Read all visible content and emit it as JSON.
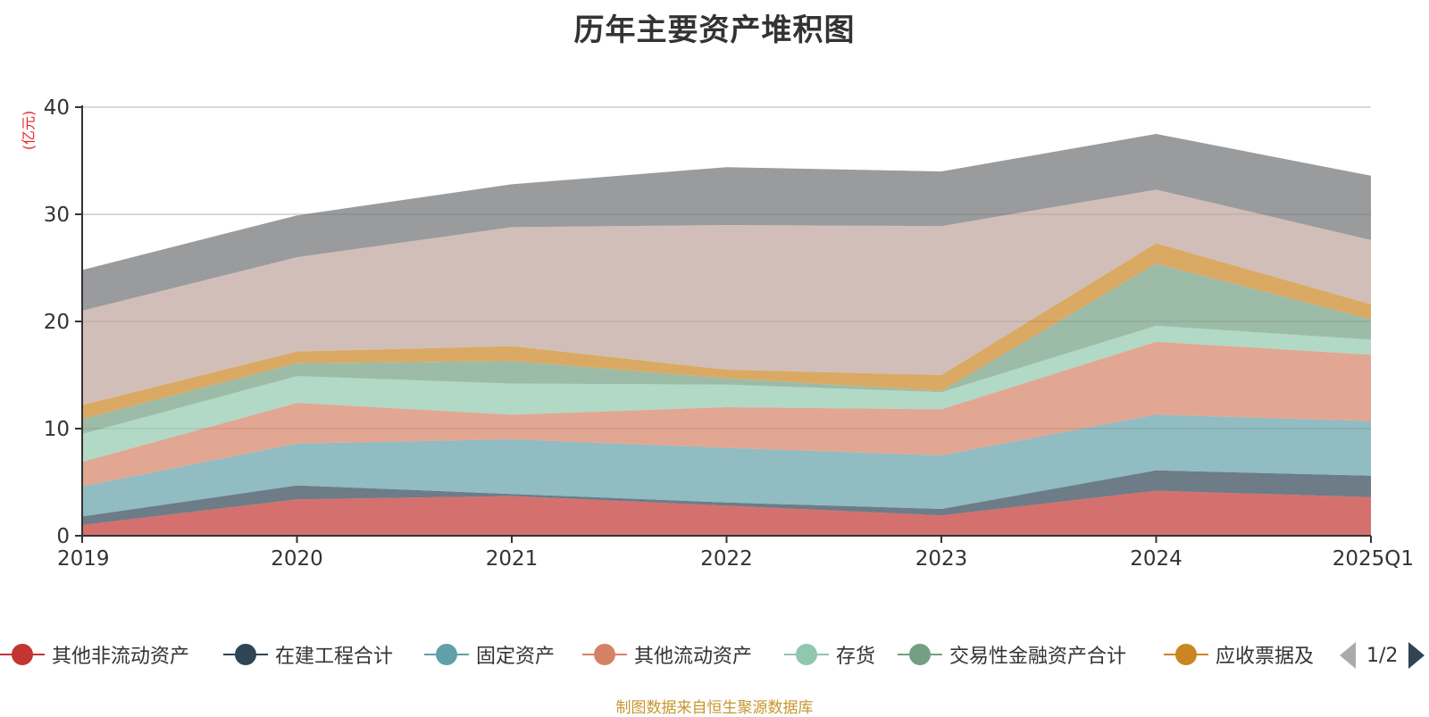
{
  "chart_data": {
    "type": "area",
    "stacked": true,
    "title": "历年主要资产堆积图",
    "ylabel": "(亿元)",
    "xlabel": "",
    "categories": [
      "2019",
      "2020",
      "2021",
      "2022",
      "2023",
      "2024",
      "2025Q1"
    ],
    "ylim": [
      0,
      40
    ],
    "yticks": [
      0,
      10,
      20,
      30,
      40
    ],
    "grid": true,
    "series": [
      {
        "name": "其他非流动资产",
        "color": "#c23531",
        "values": [
          1.0,
          3.4,
          3.7,
          2.8,
          1.9,
          4.2,
          3.6
        ]
      },
      {
        "name": "在建工程合计",
        "color": "#2f4554",
        "values": [
          0.8,
          1.3,
          0.2,
          0.3,
          0.6,
          1.9,
          2.0
        ]
      },
      {
        "name": "固定资产",
        "color": "#61a0a8",
        "values": [
          2.8,
          3.9,
          5.1,
          5.1,
          5.0,
          5.2,
          5.1
        ]
      },
      {
        "name": "其他流动资产",
        "color": "#d48265",
        "values": [
          2.3,
          3.8,
          2.3,
          3.8,
          4.3,
          6.8,
          6.2
        ]
      },
      {
        "name": "存货",
        "color": "#91c7ae",
        "values": [
          2.6,
          2.5,
          2.9,
          2.1,
          1.6,
          1.5,
          1.4
        ]
      },
      {
        "name": "交易性金融资产合计",
        "color": "#749f83",
        "values": [
          1.4,
          1.2,
          2.1,
          0.6,
          0.1,
          5.8,
          1.9
        ]
      },
      {
        "name": "应收票据及应收账款",
        "color": "#ca8622",
        "values": [
          1.3,
          1.1,
          1.4,
          0.8,
          1.5,
          1.9,
          1.4
        ]
      },
      {
        "values": [
          8.8,
          8.8,
          11.1,
          13.5,
          13.9,
          5.0,
          6.0
        ],
        "color": "#bda29a"
      },
      {
        "values": [
          3.8,
          3.9,
          4.0,
          5.4,
          5.1,
          5.2,
          6.0
        ],
        "color": "#6e7074"
      }
    ]
  },
  "legend": {
    "items": [
      {
        "label": "其他非流动资产",
        "color": "#c23531"
      },
      {
        "label": "在建工程合计",
        "color": "#2f4554"
      },
      {
        "label": "固定资产",
        "color": "#61a0a8"
      },
      {
        "label": "其他流动资产",
        "color": "#d48265"
      },
      {
        "label": "存货",
        "color": "#91c7ae"
      },
      {
        "label": "交易性金融资产合计",
        "color": "#749f83"
      },
      {
        "label": "应收票据及",
        "color": "#ca8622"
      }
    ],
    "page": "1/2"
  },
  "source_note": "制图数据来自恒生聚源数据库"
}
